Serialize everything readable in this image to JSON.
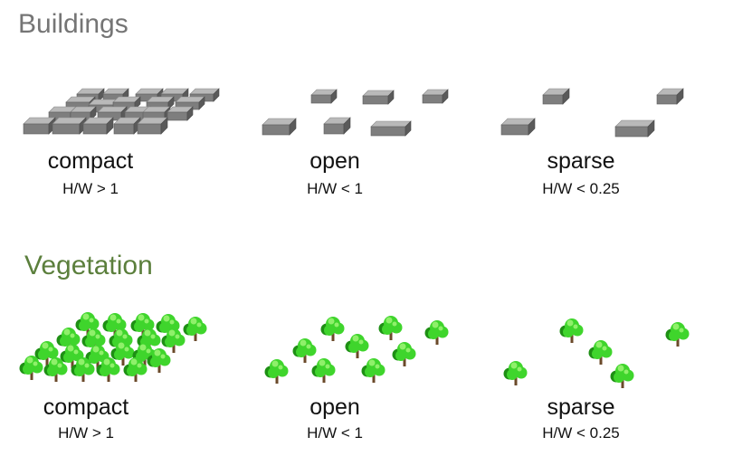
{
  "buildings": {
    "title": "Buildings",
    "title_color": "#757575",
    "panels": [
      {
        "name": "compact",
        "label": "compact",
        "ratio": "H/W > 1"
      },
      {
        "name": "open",
        "label": "open",
        "ratio": "H/W < 1"
      },
      {
        "name": "sparse",
        "label": "sparse",
        "ratio": "H/W < 0.25"
      }
    ]
  },
  "vegetation": {
    "title": "Vegetation",
    "title_color": "#5b7f3c",
    "panels": [
      {
        "name": "compact",
        "label": "compact",
        "ratio": "H/W > 1"
      },
      {
        "name": "open",
        "label": "open",
        "ratio": "H/W < 1"
      },
      {
        "name": "sparse",
        "label": "sparse",
        "ratio": "H/W < 0.25"
      }
    ]
  },
  "icons": {
    "building": "building-block-icon",
    "tree": "tree-icon",
    "building_colors": {
      "top": "#b9b9b9",
      "front": "#7e7e7e",
      "side": "#5a5a5a"
    },
    "tree_colors": {
      "leaf": "#3fd52c",
      "leaf_light": "#8ff06a",
      "leaf_dark": "#1e8f14",
      "trunk": "#6b4a2a"
    }
  }
}
